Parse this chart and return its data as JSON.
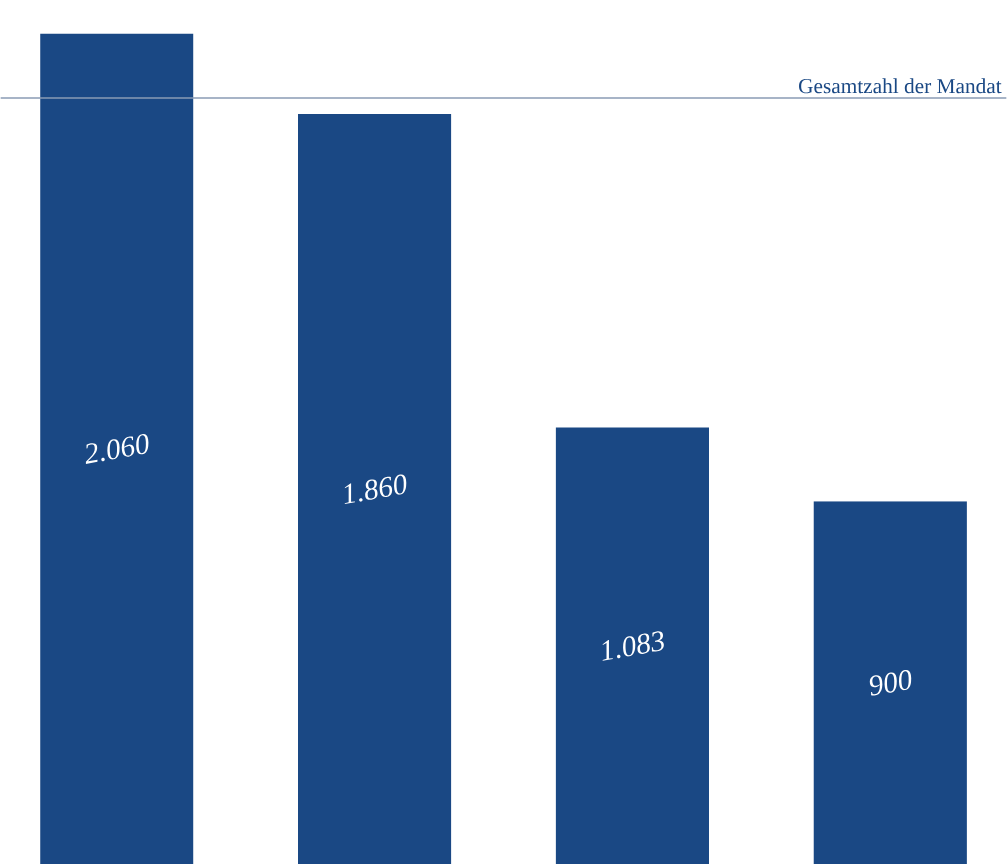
{
  "chart_data": {
    "type": "bar",
    "categories": [
      null,
      null,
      null,
      null
    ],
    "values": [
      2060,
      1860,
      1083,
      900
    ],
    "value_labels": [
      "2.060",
      "1.860",
      "1.083",
      "900"
    ],
    "color": "#1a4884",
    "ref_lines": [
      {
        "axis": "y",
        "value": 1900,
        "label": "Gesamtzahl der Mandat",
        "color": "#8a9bb5"
      }
    ]
  }
}
